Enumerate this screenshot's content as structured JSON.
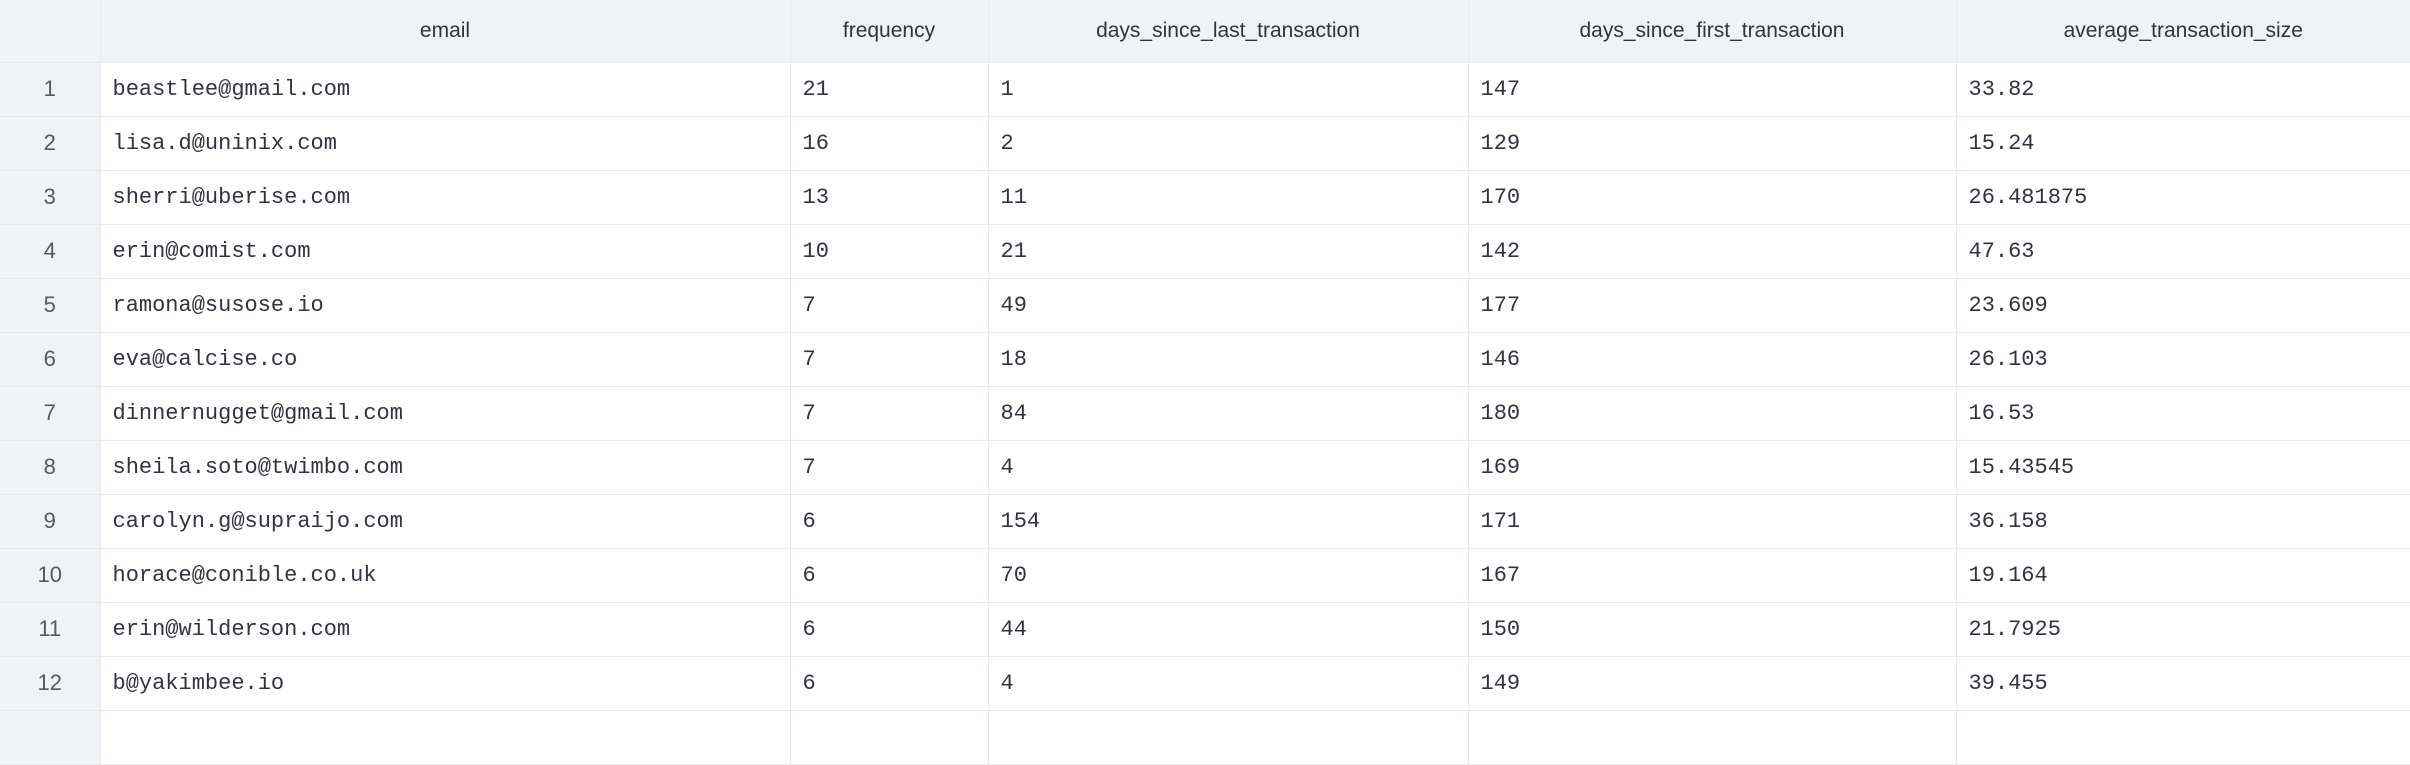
{
  "table": {
    "columns": [
      "",
      "email",
      "frequency",
      "days_since_last_transaction",
      "days_since_first_transaction",
      "average_transaction_size"
    ],
    "rows": [
      [
        "1",
        "beastlee@gmail.com",
        "21",
        "1",
        "147",
        "33.82"
      ],
      [
        "2",
        "lisa.d@uninix.com",
        "16",
        "2",
        "129",
        "15.24"
      ],
      [
        "3",
        "sherri@uberise.com",
        "13",
        "11",
        "170",
        "26.481875"
      ],
      [
        "4",
        "erin@comist.com",
        "10",
        "21",
        "142",
        "47.63"
      ],
      [
        "5",
        "ramona@susose.io",
        "7",
        "49",
        "177",
        "23.609"
      ],
      [
        "6",
        "eva@calcise.co",
        "7",
        "18",
        "146",
        "26.103"
      ],
      [
        "7",
        "dinnernugget@gmail.com",
        "7",
        "84",
        "180",
        "16.53"
      ],
      [
        "8",
        "sheila.soto@twimbo.com",
        "7",
        "4",
        "169",
        "15.43545"
      ],
      [
        "9",
        "carolyn.g@supraijo.com",
        "6",
        "154",
        "171",
        "36.158"
      ],
      [
        "10",
        "horace@conible.co.uk",
        "6",
        "70",
        "167",
        "19.164"
      ],
      [
        "11",
        "erin@wilderson.com",
        "6",
        "44",
        "150",
        "21.7925"
      ],
      [
        "12",
        "b@yakimbee.io",
        "6",
        "4",
        "149",
        "39.455"
      ]
    ]
  }
}
